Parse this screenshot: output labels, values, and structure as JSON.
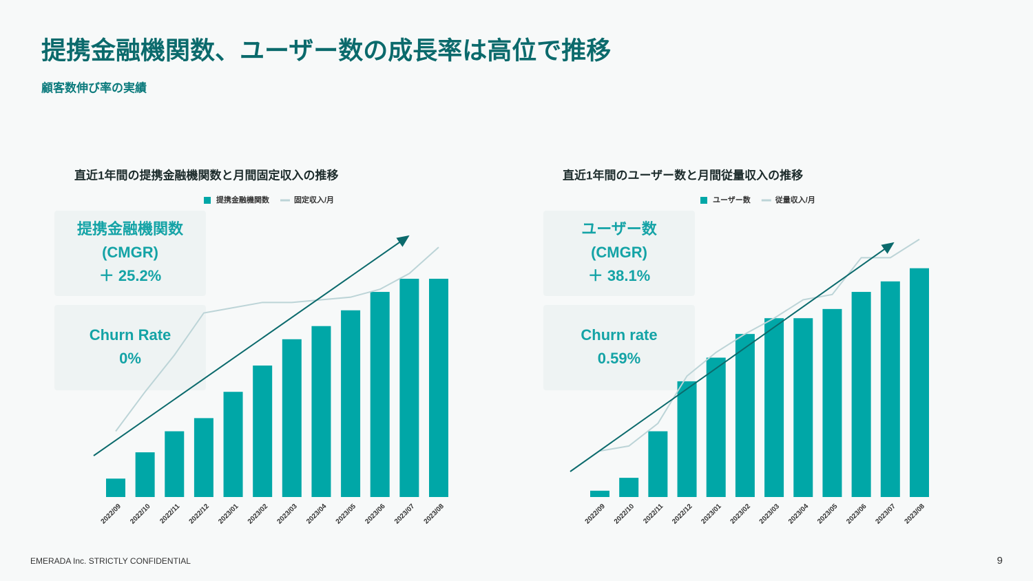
{
  "header": {
    "title": "提携金融機関数、ユーザー数の成長率は高位で推移",
    "subtitle": "顧客数伸び率の実績"
  },
  "chart_data": [
    {
      "type": "bar",
      "title": "直近1年間の提携金融機関数と月間固定収入の推移",
      "categories": [
        "2022/09",
        "2022/10",
        "2022/11",
        "2022/12",
        "2023/01",
        "2023/02",
        "2023/03",
        "2023/04",
        "2023/05",
        "2023/06",
        "2023/07",
        "2023/08"
      ],
      "series": [
        {
          "name": "提携金融機関数",
          "type": "bar",
          "color": "#00a7a7",
          "values": [
            7,
            17,
            25,
            30,
            40,
            50,
            60,
            65,
            71,
            78,
            83,
            83
          ]
        },
        {
          "name": "固定収入/月",
          "type": "line",
          "color": "#bcd4d7",
          "values": [
            25,
            40,
            54,
            70,
            72,
            74,
            74,
            75,
            76,
            79,
            85,
            95
          ]
        }
      ],
      "ylim": [
        0,
        100
      ],
      "annotations": [
        {
          "lines": [
            "提携金融機関数",
            "(CMGR)",
            "＋ 25.2%"
          ]
        },
        {
          "lines": [
            "Churn Rate",
            "0%"
          ]
        }
      ]
    },
    {
      "type": "bar",
      "title": "直近1年間のユーザー数と月間従量収入の推移",
      "categories": [
        "2022/09",
        "2022/10",
        "2022/11",
        "2022/12",
        "2023/01",
        "2023/02",
        "2023/03",
        "2023/04",
        "2023/05",
        "2023/06",
        "2023/07",
        "2023/08"
      ],
      "series": [
        {
          "name": "ユーザー数",
          "type": "bar",
          "color": "#00a7a7",
          "values": [
            2.4,
            7.3,
            25,
            44,
            53,
            62,
            68,
            68,
            71.5,
            78,
            82,
            87
          ]
        },
        {
          "name": "従量収入/月",
          "type": "line",
          "color": "#bcd4d7",
          "values": [
            17.5,
            19.4,
            28,
            46,
            55,
            62,
            68,
            75,
            77,
            91,
            91,
            98
          ]
        }
      ],
      "ylim": [
        0,
        100
      ],
      "annotations": [
        {
          "lines": [
            "ユーザー数",
            "(CMGR)",
            "＋ 38.1%"
          ]
        },
        {
          "lines": [
            "Churn rate",
            "0.59%"
          ]
        }
      ]
    }
  ],
  "footer": {
    "text": "EMERADA Inc. STRICTLY CONFIDENTIAL",
    "page": 9
  }
}
